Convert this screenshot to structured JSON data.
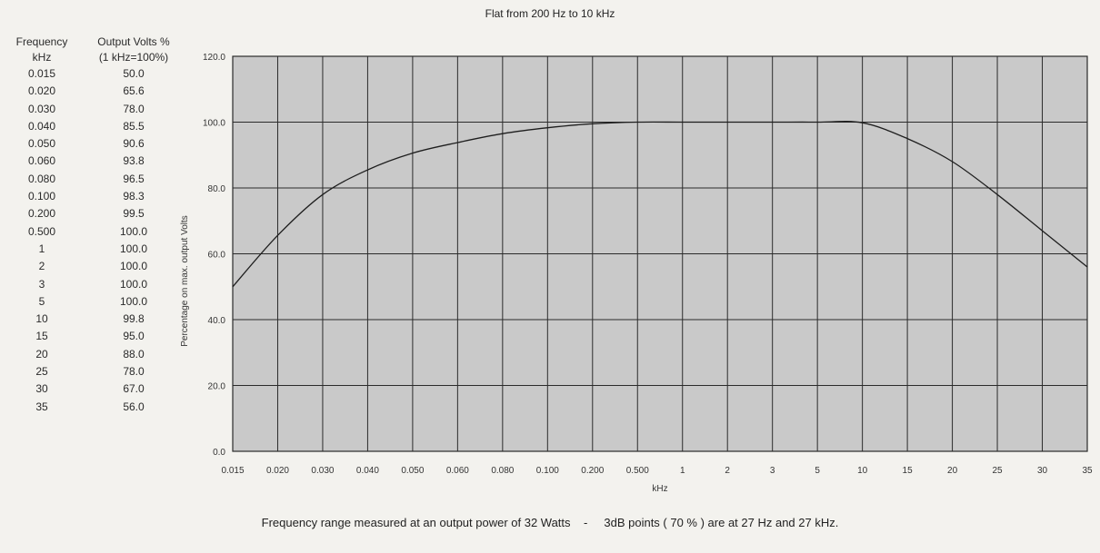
{
  "title": "Flat from 200 Hz to 10 kHz",
  "table": {
    "header_col1_line1": "Frequency",
    "header_col1_line2": "kHz",
    "header_col2_line1": "Output Volts %",
    "header_col2_line2": "(1 kHz=100%)",
    "rows": [
      {
        "freq": "0.015",
        "volts": "50.0"
      },
      {
        "freq": "0.020",
        "volts": "65.6"
      },
      {
        "freq": "0.030",
        "volts": "78.0"
      },
      {
        "freq": "0.040",
        "volts": "85.5"
      },
      {
        "freq": "0.050",
        "volts": "90.6"
      },
      {
        "freq": "0.060",
        "volts": "93.8"
      },
      {
        "freq": "0.080",
        "volts": "96.5"
      },
      {
        "freq": "0.100",
        "volts": "98.3"
      },
      {
        "freq": "0.200",
        "volts": "99.5"
      },
      {
        "freq": "0.500",
        "volts": "100.0"
      },
      {
        "freq": "1",
        "volts": "100.0"
      },
      {
        "freq": "2",
        "volts": "100.0"
      },
      {
        "freq": "3",
        "volts": "100.0"
      },
      {
        "freq": "5",
        "volts": "100.0"
      },
      {
        "freq": "10",
        "volts": "99.8"
      },
      {
        "freq": "15",
        "volts": "95.0"
      },
      {
        "freq": "20",
        "volts": "88.0"
      },
      {
        "freq": "25",
        "volts": "78.0"
      },
      {
        "freq": "30",
        "volts": "67.0"
      },
      {
        "freq": "35",
        "volts": "56.0"
      }
    ]
  },
  "footer": "Frequency range measured at an output power of 32 Watts    -     3dB points ( 70 % ) are at 27 Hz and 27 kHz.",
  "colors": {
    "plot_bg": "#c9c9c9",
    "grid": "#2b2b2b",
    "curve": "#1e1e1e",
    "page_bg": "#f3f2ee"
  },
  "chart_data": {
    "type": "line",
    "x_scale": "categorical (non-uniform)",
    "categories": [
      "0.015",
      "0.020",
      "0.030",
      "0.040",
      "0.050",
      "0.060",
      "0.080",
      "0.100",
      "0.200",
      "0.500",
      "1",
      "2",
      "3",
      "5",
      "10",
      "15",
      "20",
      "25",
      "30",
      "35"
    ],
    "values": [
      50.0,
      65.6,
      78.0,
      85.5,
      90.6,
      93.8,
      96.5,
      98.3,
      99.5,
      100.0,
      100.0,
      100.0,
      100.0,
      100.0,
      99.8,
      95.0,
      88.0,
      78.0,
      67.0,
      56.0
    ],
    "title": "Flat from 200 Hz to 10 kHz",
    "xlabel": "kHz",
    "ylabel": "Percentage on max. output Volts",
    "ylim": [
      0,
      120
    ],
    "yticks": [
      "0.0",
      "20.0",
      "40.0",
      "60.0",
      "80.0",
      "100.0",
      "120.0"
    ],
    "grid": true,
    "legend": "none"
  }
}
